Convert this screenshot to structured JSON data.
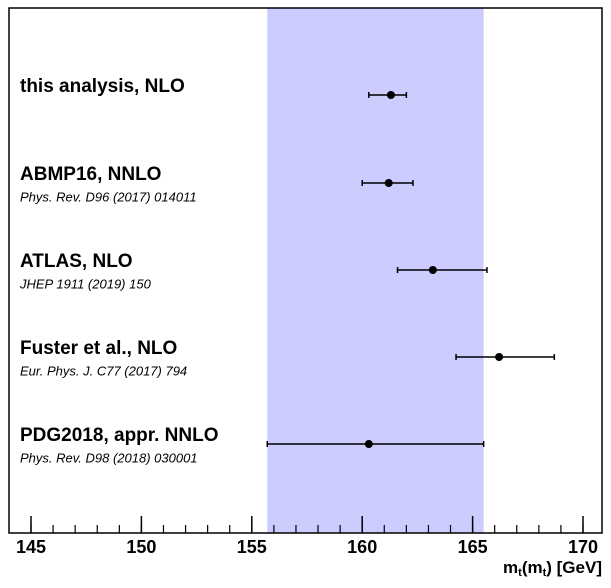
{
  "chart_data": {
    "type": "errorbar",
    "categories": [
      "this analysis, NLO",
      "ABMP16, NNLO",
      "ATLAS, NLO",
      "Fuster et al., NLO",
      "PDG2018, appr. NNLO"
    ],
    "references": [
      null,
      "Phys. Rev. D96 (2017) 014011",
      "JHEP 1911 (2019) 150",
      "Eur. Phys. J. C77 (2017) 794",
      "Phys. Rev. D98 (2018) 030001"
    ],
    "values": [
      161.3,
      161.2,
      163.2,
      166.2,
      160.3
    ],
    "errors_minus": [
      1.0,
      1.2,
      1.6,
      1.95,
      4.6
    ],
    "errors_plus": [
      0.7,
      1.1,
      2.45,
      2.5,
      5.2
    ],
    "band": [
      155.7,
      165.5
    ],
    "band_color": "#ccccff",
    "color": "#000000",
    "xlim": [
      145,
      170
    ],
    "xticks": [
      145,
      150,
      155,
      160,
      165,
      170
    ],
    "minor_step": 1,
    "xlabel_parts": [
      "m",
      "t",
      "(m",
      "t",
      ") [GeV]"
    ]
  }
}
